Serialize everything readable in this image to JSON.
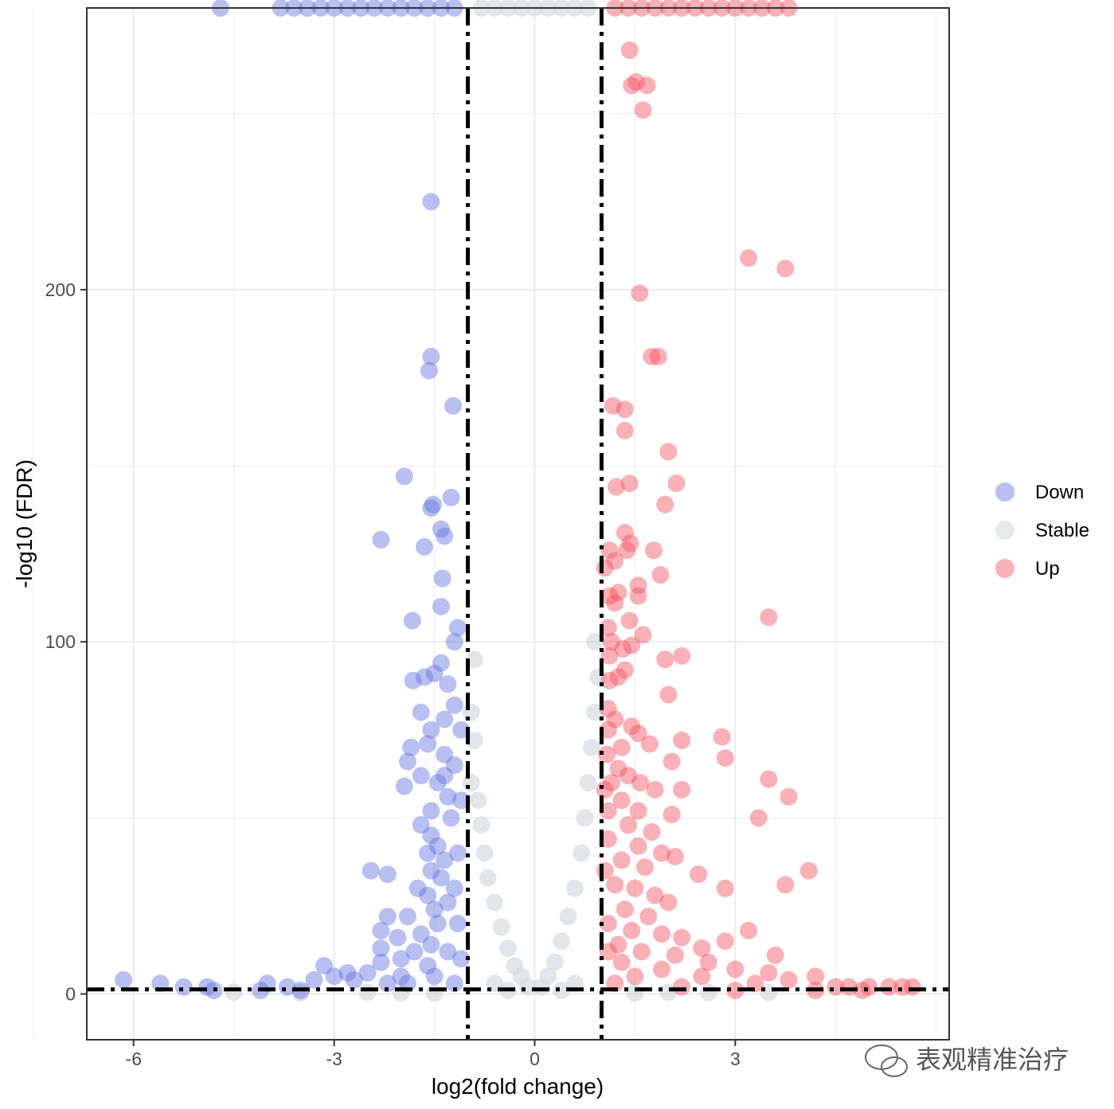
{
  "chart_data": {
    "type": "scatter",
    "title": "",
    "xlabel": "log2(fold change)",
    "ylabel": "-log10 (FDR)",
    "xlim": [
      -6.7,
      6.2
    ],
    "ylim": [
      -13,
      280
    ],
    "x_ticks": [
      -6,
      -3,
      0,
      3
    ],
    "x_tick_labels": [
      "-6",
      "-3",
      "0",
      "3"
    ],
    "y_ticks": [
      0,
      100,
      200
    ],
    "y_tick_labels": [
      "0",
      "100",
      "200"
    ],
    "grid": true,
    "legend_position": "right",
    "thresholds": {
      "log2fc": [
        -1,
        1
      ],
      "neg_log10_fdr": 1.3
    },
    "series": [
      {
        "name": "Down",
        "color": "#6272E0",
        "points": [
          [
            -1.55,
            225
          ],
          [
            -1.55,
            181
          ],
          [
            -1.58,
            177
          ],
          [
            -1.22,
            167
          ],
          [
            -1.95,
            147
          ],
          [
            -1.25,
            141
          ],
          [
            -1.52,
            139
          ],
          [
            -1.55,
            138
          ],
          [
            -1.4,
            132
          ],
          [
            -1.35,
            130
          ],
          [
            -2.3,
            129
          ],
          [
            -1.65,
            127
          ],
          [
            -1.38,
            118
          ],
          [
            -1.4,
            110
          ],
          [
            -1.83,
            106
          ],
          [
            -1.15,
            104
          ],
          [
            -1.2,
            100
          ],
          [
            -1.4,
            94
          ],
          [
            -1.5,
            91
          ],
          [
            -1.82,
            89
          ],
          [
            -1.65,
            90
          ],
          [
            -1.3,
            88
          ],
          [
            -1.2,
            82
          ],
          [
            -1.7,
            80
          ],
          [
            -1.35,
            78
          ],
          [
            -1.55,
            75
          ],
          [
            -1.1,
            75
          ],
          [
            -1.85,
            70
          ],
          [
            -1.6,
            71
          ],
          [
            -1.35,
            68
          ],
          [
            -1.9,
            66
          ],
          [
            -1.7,
            62
          ],
          [
            -1.35,
            62
          ],
          [
            -1.95,
            59
          ],
          [
            -1.45,
            60
          ],
          [
            -1.3,
            56
          ],
          [
            -1.55,
            52
          ],
          [
            -1.25,
            50
          ],
          [
            -1.7,
            48
          ],
          [
            -1.55,
            45
          ],
          [
            -1.45,
            42
          ],
          [
            -1.6,
            40
          ],
          [
            -1.35,
            38
          ],
          [
            -1.55,
            35
          ],
          [
            -1.4,
            33
          ],
          [
            -1.75,
            30
          ],
          [
            -2.45,
            35
          ],
          [
            -2.2,
            34
          ],
          [
            -1.6,
            28
          ],
          [
            -1.3,
            26
          ],
          [
            -1.5,
            24
          ],
          [
            -1.9,
            22
          ],
          [
            -2.2,
            22
          ],
          [
            -1.45,
            20
          ],
          [
            -2.3,
            18
          ],
          [
            -1.7,
            17
          ],
          [
            -2.05,
            16
          ],
          [
            -1.55,
            14
          ],
          [
            -2.3,
            13
          ],
          [
            -1.8,
            12
          ],
          [
            -1.3,
            12
          ],
          [
            -2.0,
            10
          ],
          [
            -2.3,
            9
          ],
          [
            -1.6,
            8
          ],
          [
            -3.15,
            8
          ],
          [
            -2.8,
            6
          ],
          [
            -2.5,
            6
          ],
          [
            -3.0,
            5
          ],
          [
            -2.0,
            5
          ],
          [
            -1.5,
            5
          ],
          [
            -3.3,
            4
          ],
          [
            -2.7,
            4
          ],
          [
            -6.15,
            4
          ],
          [
            -5.6,
            3
          ],
          [
            -4.0,
            3
          ],
          [
            -3.7,
            2
          ],
          [
            -5.25,
            2
          ],
          [
            -4.9,
            2
          ],
          [
            -4.8,
            1
          ],
          [
            -4.1,
            1
          ],
          [
            -3.5,
            1
          ],
          [
            -2.2,
            3
          ],
          [
            -1.9,
            3
          ],
          [
            -1.2,
            3
          ],
          [
            -1.1,
            10
          ],
          [
            -1.15,
            20
          ],
          [
            -1.2,
            30
          ],
          [
            -1.15,
            40
          ],
          [
            -1.1,
            55
          ],
          [
            -1.2,
            65
          ],
          [
            -4.7,
            280
          ],
          [
            -3.8,
            280
          ],
          [
            -3.6,
            280
          ],
          [
            -3.4,
            280
          ],
          [
            -3.2,
            280
          ],
          [
            -3.0,
            280
          ],
          [
            -2.8,
            280
          ],
          [
            -2.6,
            280
          ],
          [
            -2.4,
            280
          ],
          [
            -2.2,
            280
          ],
          [
            -2.0,
            280
          ],
          [
            -1.8,
            280
          ],
          [
            -1.6,
            280
          ],
          [
            -1.4,
            280
          ],
          [
            -1.2,
            280
          ]
        ]
      },
      {
        "name": "Stable",
        "color": "#D5DCE1",
        "points": [
          [
            -0.9,
            95
          ],
          [
            -0.95,
            80
          ],
          [
            -0.9,
            72
          ],
          [
            -0.95,
            60
          ],
          [
            -0.85,
            55
          ],
          [
            -0.8,
            48
          ],
          [
            -0.75,
            40
          ],
          [
            -0.7,
            33
          ],
          [
            -0.6,
            26
          ],
          [
            -0.5,
            19
          ],
          [
            -0.4,
            13
          ],
          [
            -0.3,
            8
          ],
          [
            -0.2,
            5
          ],
          [
            -0.1,
            2
          ],
          [
            0.1,
            2
          ],
          [
            0.2,
            5
          ],
          [
            0.3,
            9
          ],
          [
            0.4,
            15
          ],
          [
            0.5,
            22
          ],
          [
            0.6,
            30
          ],
          [
            0.7,
            40
          ],
          [
            0.75,
            50
          ],
          [
            0.8,
            60
          ],
          [
            0.85,
            70
          ],
          [
            0.9,
            80
          ],
          [
            0.95,
            90
          ],
          [
            0.9,
            100
          ],
          [
            -0.6,
            3
          ],
          [
            -0.4,
            1
          ],
          [
            0.4,
            1
          ],
          [
            0.6,
            3
          ],
          [
            -2.5,
            0.5
          ],
          [
            -2.0,
            0.3
          ],
          [
            -1.5,
            0.2
          ],
          [
            1.5,
            0.3
          ],
          [
            2.0,
            0.5
          ],
          [
            2.6,
            0.4
          ],
          [
            -4.5,
            0.5
          ],
          [
            -3.5,
            0.3
          ],
          [
            3.5,
            0.4
          ],
          [
            -0.8,
            280
          ],
          [
            -0.6,
            280
          ],
          [
            -0.4,
            280
          ],
          [
            -0.2,
            280
          ],
          [
            0.0,
            280
          ],
          [
            0.2,
            280
          ],
          [
            0.4,
            280
          ],
          [
            0.6,
            280
          ],
          [
            0.8,
            280
          ]
        ]
      },
      {
        "name": "Up",
        "color": "#F5505F",
        "points": [
          [
            1.42,
            268
          ],
          [
            1.52,
            259
          ],
          [
            1.45,
            258
          ],
          [
            1.68,
            258
          ],
          [
            1.62,
            251
          ],
          [
            3.2,
            209
          ],
          [
            3.75,
            206
          ],
          [
            1.57,
            199
          ],
          [
            1.75,
            181
          ],
          [
            1.85,
            181
          ],
          [
            1.17,
            167
          ],
          [
            1.35,
            166
          ],
          [
            1.35,
            160
          ],
          [
            2.0,
            154
          ],
          [
            1.22,
            144
          ],
          [
            1.42,
            145
          ],
          [
            2.12,
            145
          ],
          [
            1.95,
            139
          ],
          [
            1.35,
            131
          ],
          [
            1.12,
            126
          ],
          [
            1.43,
            128
          ],
          [
            1.38,
            126
          ],
          [
            1.78,
            126
          ],
          [
            1.2,
            123
          ],
          [
            1.05,
            121
          ],
          [
            1.88,
            119
          ],
          [
            1.55,
            116
          ],
          [
            1.25,
            114
          ],
          [
            1.12,
            113
          ],
          [
            1.55,
            113
          ],
          [
            1.2,
            111
          ],
          [
            3.5,
            107
          ],
          [
            1.42,
            106
          ],
          [
            1.1,
            104
          ],
          [
            1.62,
            102
          ],
          [
            1.15,
            100
          ],
          [
            1.32,
            98
          ],
          [
            1.45,
            99
          ],
          [
            1.12,
            96
          ],
          [
            1.95,
            95
          ],
          [
            2.2,
            96
          ],
          [
            1.35,
            92
          ],
          [
            1.12,
            89
          ],
          [
            1.25,
            90
          ],
          [
            2.0,
            85
          ],
          [
            1.1,
            81
          ],
          [
            1.2,
            78
          ],
          [
            1.45,
            76
          ],
          [
            1.55,
            74
          ],
          [
            2.8,
            73
          ],
          [
            2.2,
            72
          ],
          [
            1.72,
            71
          ],
          [
            1.3,
            70
          ],
          [
            1.08,
            68
          ],
          [
            2.85,
            67
          ],
          [
            2.05,
            66
          ],
          [
            1.25,
            64
          ],
          [
            1.4,
            62
          ],
          [
            3.5,
            61
          ],
          [
            1.15,
            60
          ],
          [
            1.58,
            60
          ],
          [
            1.8,
            58
          ],
          [
            2.2,
            58
          ],
          [
            3.8,
            56
          ],
          [
            1.3,
            55
          ],
          [
            1.1,
            52
          ],
          [
            1.55,
            52
          ],
          [
            2.05,
            51
          ],
          [
            3.35,
            50
          ],
          [
            1.4,
            48
          ],
          [
            1.75,
            46
          ],
          [
            1.1,
            44
          ],
          [
            1.55,
            42
          ],
          [
            1.9,
            40
          ],
          [
            2.1,
            39
          ],
          [
            1.3,
            38
          ],
          [
            1.65,
            36
          ],
          [
            2.45,
            34
          ],
          [
            4.1,
            35
          ],
          [
            3.75,
            31
          ],
          [
            2.85,
            30
          ],
          [
            1.2,
            31
          ],
          [
            1.5,
            30
          ],
          [
            1.8,
            28
          ],
          [
            2.0,
            26
          ],
          [
            1.35,
            24
          ],
          [
            1.7,
            22
          ],
          [
            1.1,
            20
          ],
          [
            3.2,
            18
          ],
          [
            1.45,
            18
          ],
          [
            1.9,
            17
          ],
          [
            2.2,
            16
          ],
          [
            2.85,
            15
          ],
          [
            1.25,
            14
          ],
          [
            2.5,
            13
          ],
          [
            1.6,
            12
          ],
          [
            2.1,
            11
          ],
          [
            3.6,
            11
          ],
          [
            2.6,
            9
          ],
          [
            1.3,
            9
          ],
          [
            3.0,
            7
          ],
          [
            1.9,
            7
          ],
          [
            3.5,
            6
          ],
          [
            4.2,
            5
          ],
          [
            2.5,
            5
          ],
          [
            1.5,
            5
          ],
          [
            3.8,
            4
          ],
          [
            3.3,
            3
          ],
          [
            4.5,
            2
          ],
          [
            4.7,
            2
          ],
          [
            5.0,
            2
          ],
          [
            5.3,
            2
          ],
          [
            5.5,
            2
          ],
          [
            5.65,
            2
          ],
          [
            4.9,
            1
          ],
          [
            4.2,
            1
          ],
          [
            3.0,
            1
          ],
          [
            2.2,
            2
          ],
          [
            1.2,
            3
          ],
          [
            1.1,
            12
          ],
          [
            1.05,
            35
          ],
          [
            1.05,
            58
          ],
          [
            1.1,
            75
          ],
          [
            1.2,
            280
          ],
          [
            1.4,
            280
          ],
          [
            1.6,
            280
          ],
          [
            1.8,
            280
          ],
          [
            2.0,
            280
          ],
          [
            2.2,
            280
          ],
          [
            2.4,
            280
          ],
          [
            2.6,
            280
          ],
          [
            2.8,
            280
          ],
          [
            3.0,
            280
          ],
          [
            3.2,
            280
          ],
          [
            3.4,
            280
          ],
          [
            3.6,
            280
          ],
          [
            3.8,
            280
          ]
        ]
      }
    ]
  },
  "watermark": "表观精准治疗"
}
